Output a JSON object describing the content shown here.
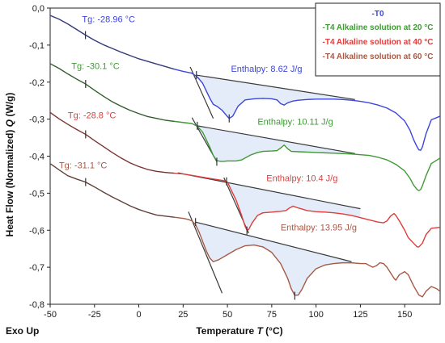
{
  "chart_data": {
    "type": "line",
    "xlabel_prefix": "Temperature ",
    "xlabel_var": "T",
    "xlabel_suffix": " (°C)",
    "ylabel_prefix": "Heat Flow (Normalized) ",
    "ylabel_var": "Q",
    "ylabel_suffix": " (W/g)",
    "corner_label": "Exo Up",
    "xlim": [
      -50,
      170
    ],
    "ylim": [
      -0.8,
      0.0
    ],
    "xticks": [
      -50,
      -25,
      0,
      25,
      50,
      75,
      100,
      125,
      150
    ],
    "yticks": [
      0.0,
      -0.1,
      -0.2,
      -0.3,
      -0.4,
      -0.5,
      -0.6,
      -0.7,
      -0.8
    ],
    "ytick_labels": [
      "0,0",
      "-0,1",
      "-0,2",
      "-0,3",
      "-0,4",
      "-0,5",
      "-0,6",
      "-0,7",
      "-0,8"
    ],
    "legend_position": "top-right",
    "series": [
      {
        "name": "-T0",
        "color": "#3c46dc",
        "tg": {
          "x": -30.1,
          "y": -0.073
        },
        "annotations": [
          {
            "text": "Tg: -28.96 °C",
            "x": -32,
            "y": -0.038
          },
          {
            "text": "Enthalpy: 8.62 J/g",
            "x": 52,
            "y": -0.172
          }
        ],
        "onset": {
          "x": 32.5,
          "y": -0.181
        },
        "peak": {
          "x": 51.0,
          "y": -0.298
        },
        "baseline": [
          [
            32.5,
            -0.181
          ],
          [
            122,
            -0.247
          ]
        ],
        "tangent": [
          [
            29,
            -0.159
          ],
          [
            42,
            -0.298
          ]
        ],
        "x": [
          -50,
          -45,
          -40,
          -35,
          -30,
          -25,
          -20,
          -15,
          -10,
          -5,
          0,
          5,
          10,
          15,
          20,
          25,
          30,
          33,
          36,
          38,
          40,
          42,
          44,
          47,
          50,
          51,
          53,
          56,
          60,
          65,
          70,
          75,
          78,
          80,
          82,
          84,
          87,
          90,
          95,
          100,
          105,
          110,
          115,
          120,
          125,
          130,
          135,
          140,
          145,
          150,
          153,
          155,
          157,
          158,
          159,
          160,
          162,
          165,
          170
        ],
        "y": [
          -0.02,
          -0.03,
          -0.043,
          -0.058,
          -0.073,
          -0.087,
          -0.099,
          -0.109,
          -0.119,
          -0.128,
          -0.137,
          -0.144,
          -0.151,
          -0.158,
          -0.165,
          -0.171,
          -0.176,
          -0.186,
          -0.203,
          -0.223,
          -0.243,
          -0.26,
          -0.265,
          -0.276,
          -0.293,
          -0.298,
          -0.292,
          -0.265,
          -0.248,
          -0.245,
          -0.244,
          -0.245,
          -0.248,
          -0.258,
          -0.262,
          -0.256,
          -0.251,
          -0.249,
          -0.247,
          -0.246,
          -0.246,
          -0.246,
          -0.247,
          -0.249,
          -0.252,
          -0.256,
          -0.262,
          -0.27,
          -0.283,
          -0.305,
          -0.33,
          -0.355,
          -0.375,
          -0.383,
          -0.384,
          -0.375,
          -0.34,
          -0.302,
          -0.292
        ]
      },
      {
        "name": "-T4 Alkaline solution at 20 °C",
        "color": "#3f9a35",
        "tg": {
          "x": -30.0,
          "y": -0.205
        },
        "annotations": [
          {
            "text": "Tg: -30.1 °C",
            "x": -38,
            "y": -0.165
          },
          {
            "text": "Enthalpy: 10.11 J/g",
            "x": 67,
            "y": -0.315
          }
        ],
        "onset": {
          "x": 33,
          "y": -0.318
        },
        "peak": {
          "x": 44.0,
          "y": -0.415
        },
        "baseline": [
          [
            33,
            -0.318
          ],
          [
            122,
            -0.393
          ]
        ],
        "tangent": [
          [
            30,
            -0.296
          ],
          [
            44,
            -0.415
          ]
        ],
        "x": [
          -50,
          -45,
          -40,
          -35,
          -30,
          -25,
          -20,
          -15,
          -10,
          -5,
          0,
          5,
          10,
          15,
          20,
          25,
          30,
          33,
          36,
          38,
          40,
          42,
          44,
          46,
          48,
          50,
          52,
          55,
          58,
          60,
          63,
          67,
          70,
          75,
          78,
          80,
          82,
          84,
          86,
          90,
          95,
          100,
          105,
          110,
          115,
          120,
          125,
          130,
          135,
          140,
          145,
          150,
          153,
          155,
          157,
          158,
          159,
          160,
          162,
          165,
          170
        ],
        "y": [
          -0.15,
          -0.163,
          -0.178,
          -0.192,
          -0.205,
          -0.222,
          -0.238,
          -0.253,
          -0.265,
          -0.276,
          -0.285,
          -0.293,
          -0.298,
          -0.303,
          -0.306,
          -0.309,
          -0.312,
          -0.319,
          -0.335,
          -0.355,
          -0.375,
          -0.398,
          -0.412,
          -0.414,
          -0.414,
          -0.413,
          -0.413,
          -0.413,
          -0.41,
          -0.405,
          -0.397,
          -0.39,
          -0.387,
          -0.386,
          -0.385,
          -0.378,
          -0.37,
          -0.38,
          -0.387,
          -0.388,
          -0.389,
          -0.39,
          -0.391,
          -0.392,
          -0.393,
          -0.394,
          -0.396,
          -0.398,
          -0.403,
          -0.41,
          -0.422,
          -0.44,
          -0.46,
          -0.478,
          -0.49,
          -0.493,
          -0.49,
          -0.48,
          -0.453,
          -0.42,
          -0.405
        ]
      },
      {
        "name": "-T4 Alkaline solution at 40 °C",
        "color": "#e03c3c",
        "tg": {
          "x": -30.0,
          "y": -0.341
        },
        "annotations": [
          {
            "text": "Tg: -28.8 °C",
            "x": -40,
            "y": -0.298
          },
          {
            "text": "Enthalpy: 10.4 J/g",
            "x": 72,
            "y": -0.468
          }
        ],
        "onset": {
          "x": 49.5,
          "y": -0.468
        },
        "peak": {
          "x": 61.0,
          "y": -0.601
        },
        "baseline": [
          [
            22,
            -0.445
          ],
          [
            125,
            -0.542
          ]
        ],
        "tangent": [
          [
            48,
            -0.458
          ],
          [
            62,
            -0.608
          ]
        ],
        "x": [
          -50,
          -45,
          -40,
          -35,
          -30,
          -25,
          -20,
          -15,
          -10,
          -5,
          0,
          5,
          10,
          15,
          20,
          25,
          30,
          35,
          40,
          45,
          48,
          50,
          52,
          55,
          58,
          60,
          61,
          62,
          64,
          67,
          70,
          75,
          80,
          83,
          85,
          87,
          90,
          95,
          100,
          105,
          110,
          115,
          120,
          125,
          130,
          135,
          138,
          140,
          142,
          144,
          145,
          147,
          150,
          152,
          155,
          157,
          158,
          160,
          162,
          165,
          170
        ],
        "y": [
          -0.282,
          -0.299,
          -0.314,
          -0.328,
          -0.341,
          -0.358,
          -0.374,
          -0.39,
          -0.405,
          -0.418,
          -0.428,
          -0.436,
          -0.441,
          -0.444,
          -0.446,
          -0.448,
          -0.452,
          -0.456,
          -0.46,
          -0.464,
          -0.466,
          -0.47,
          -0.49,
          -0.52,
          -0.56,
          -0.59,
          -0.6,
          -0.598,
          -0.58,
          -0.56,
          -0.553,
          -0.551,
          -0.549,
          -0.547,
          -0.54,
          -0.535,
          -0.54,
          -0.547,
          -0.55,
          -0.551,
          -0.553,
          -0.556,
          -0.56,
          -0.566,
          -0.572,
          -0.578,
          -0.58,
          -0.575,
          -0.562,
          -0.555,
          -0.56,
          -0.575,
          -0.6,
          -0.62,
          -0.635,
          -0.645,
          -0.645,
          -0.635,
          -0.612,
          -0.595,
          -0.592
        ]
      },
      {
        "name": "-T4 Alkaline solution at 60 °C",
        "color": "#a65a45",
        "tg": {
          "x": -30.0,
          "y": -0.47
        },
        "annotations": [
          {
            "text": "Tg: -31.1 °C",
            "x": -45,
            "y": -0.433
          },
          {
            "text": "Enthalpy: 13.95 J/g",
            "x": 80,
            "y": -0.6
          }
        ],
        "onset": {
          "x": 32,
          "y": -0.578
        },
        "peak": {
          "x": 88.0,
          "y": -0.777
        },
        "baseline": [
          [
            32,
            -0.578
          ],
          [
            120,
            -0.685
          ]
        ],
        "tangent": [
          [
            28,
            -0.55
          ],
          [
            47,
            -0.77
          ]
        ],
        "x": [
          -50,
          -45,
          -40,
          -35,
          -30,
          -25,
          -20,
          -15,
          -10,
          -5,
          0,
          5,
          10,
          15,
          20,
          25,
          28,
          30,
          32,
          34,
          36,
          38,
          40,
          42,
          45,
          50,
          55,
          60,
          65,
          70,
          75,
          80,
          84,
          86,
          88,
          90,
          92,
          95,
          100,
          105,
          110,
          115,
          120,
          125,
          128,
          130,
          132,
          134,
          136,
          138,
          140,
          142,
          144,
          145,
          147,
          150,
          152,
          155,
          158,
          160,
          162,
          165,
          168,
          170
        ],
        "y": [
          -0.42,
          -0.437,
          -0.453,
          -0.462,
          -0.47,
          -0.483,
          -0.497,
          -0.51,
          -0.522,
          -0.534,
          -0.544,
          -0.552,
          -0.559,
          -0.562,
          -0.565,
          -0.568,
          -0.571,
          -0.575,
          -0.585,
          -0.605,
          -0.63,
          -0.655,
          -0.675,
          -0.685,
          -0.68,
          -0.666,
          -0.652,
          -0.642,
          -0.64,
          -0.645,
          -0.66,
          -0.69,
          -0.73,
          -0.758,
          -0.776,
          -0.775,
          -0.76,
          -0.73,
          -0.704,
          -0.694,
          -0.69,
          -0.688,
          -0.688,
          -0.69,
          -0.69,
          -0.695,
          -0.7,
          -0.696,
          -0.688,
          -0.69,
          -0.7,
          -0.715,
          -0.73,
          -0.735,
          -0.72,
          -0.712,
          -0.72,
          -0.75,
          -0.775,
          -0.78,
          -0.765,
          -0.752,
          -0.758,
          -0.765
        ]
      }
    ]
  }
}
